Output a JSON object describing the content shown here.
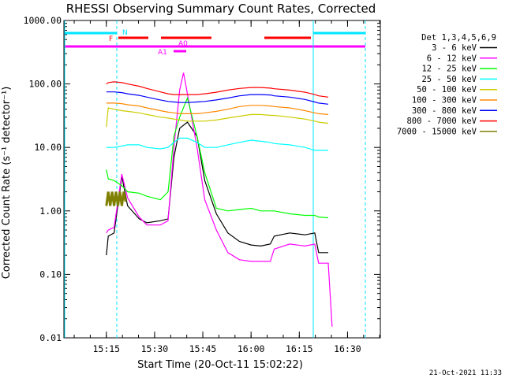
{
  "chart_data": {
    "type": "line",
    "title": "RHESSI Observing Summary Count Rates, Corrected",
    "xlabel": "Start Time (20-Oct-11 15:02:22)",
    "ylabel": "Corrected Count Rate (s⁻¹ detector⁻¹)",
    "yscale": "log",
    "ylim": [
      0.01,
      1000
    ],
    "xlim_minutes": [
      15.03,
      16.67
    ],
    "x_tick_labels": [
      "15:15",
      "15:30",
      "15:45",
      "16:00",
      "16:15",
      "16:30"
    ],
    "y_tick_labels": [
      "0.01",
      "0.10",
      "1.00",
      "10.00",
      "100.00",
      "1000.00"
    ],
    "legend_title": "Det 1,3,4,5,6,9",
    "stamp": "21-Oct-2021 11:33",
    "flags": {
      "night": "N",
      "flare": "F",
      "attenuator": "A0",
      "attenuator2": "A1"
    },
    "grid": false,
    "legend_position": "top-right",
    "series": [
      {
        "name": "3 - 6 keV",
        "color": "#000000",
        "points": [
          [
            15.25,
            0.2
          ],
          [
            15.26,
            0.4
          ],
          [
            15.29,
            0.45
          ],
          [
            15.33,
            3.5
          ],
          [
            15.36,
            1.2
          ],
          [
            15.42,
            0.75
          ],
          [
            15.46,
            0.65
          ],
          [
            15.53,
            0.7
          ],
          [
            15.57,
            0.75
          ],
          [
            15.6,
            7
          ],
          [
            15.63,
            20
          ],
          [
            15.67,
            25
          ],
          [
            15.72,
            15
          ],
          [
            15.76,
            3
          ],
          [
            15.82,
            0.9
          ],
          [
            15.88,
            0.45
          ],
          [
            15.94,
            0.33
          ],
          [
            16.0,
            0.29
          ],
          [
            16.05,
            0.28
          ],
          [
            16.1,
            0.3
          ],
          [
            16.12,
            0.4
          ],
          [
            16.2,
            0.45
          ],
          [
            16.28,
            0.42
          ],
          [
            16.33,
            0.45
          ],
          [
            16.35,
            0.22
          ],
          [
            16.4,
            0.22
          ]
        ]
      },
      {
        "name": "6 - 12 keV",
        "color": "#ff00ff",
        "points": [
          [
            15.25,
            0.45
          ],
          [
            15.26,
            0.5
          ],
          [
            15.29,
            0.55
          ],
          [
            15.33,
            3.8
          ],
          [
            15.36,
            1.6
          ],
          [
            15.42,
            0.8
          ],
          [
            15.46,
            0.6
          ],
          [
            15.53,
            0.6
          ],
          [
            15.57,
            0.7
          ],
          [
            15.6,
            10
          ],
          [
            15.63,
            80
          ],
          [
            15.65,
            150
          ],
          [
            15.67,
            70
          ],
          [
            15.72,
            10
          ],
          [
            15.76,
            1.5
          ],
          [
            15.82,
            0.5
          ],
          [
            15.88,
            0.22
          ],
          [
            15.94,
            0.17
          ],
          [
            16.0,
            0.16
          ],
          [
            16.05,
            0.16
          ],
          [
            16.1,
            0.16
          ],
          [
            16.12,
            0.25
          ],
          [
            16.2,
            0.3
          ],
          [
            16.28,
            0.28
          ],
          [
            16.33,
            0.3
          ],
          [
            16.35,
            0.15
          ],
          [
            16.4,
            0.15
          ],
          [
            16.42,
            0.015
          ]
        ]
      },
      {
        "name": "12 - 25 keV",
        "color": "#00ff00",
        "points": [
          [
            15.25,
            4.5
          ],
          [
            15.26,
            3.2
          ],
          [
            15.29,
            3.0
          ],
          [
            15.33,
            2.5
          ],
          [
            15.36,
            2.0
          ],
          [
            15.42,
            1.9
          ],
          [
            15.46,
            1.7
          ],
          [
            15.53,
            1.5
          ],
          [
            15.57,
            2.0
          ],
          [
            15.6,
            15
          ],
          [
            15.63,
            30
          ],
          [
            15.67,
            60
          ],
          [
            15.72,
            15
          ],
          [
            15.76,
            4
          ],
          [
            15.82,
            1.1
          ],
          [
            15.88,
            1.0
          ],
          [
            15.94,
            1.05
          ],
          [
            16.0,
            1.1
          ],
          [
            16.05,
            1.0
          ],
          [
            16.1,
            1.0
          ],
          [
            16.12,
            1.0
          ],
          [
            16.2,
            0.9
          ],
          [
            16.28,
            0.85
          ],
          [
            16.33,
            0.85
          ],
          [
            16.35,
            0.8
          ],
          [
            16.4,
            0.78
          ]
        ]
      },
      {
        "name": "25 - 50 keV",
        "color": "#00ffff",
        "points": [
          [
            15.25,
            10
          ],
          [
            15.26,
            10
          ],
          [
            15.29,
            10
          ],
          [
            15.33,
            10.5
          ],
          [
            15.36,
            11
          ],
          [
            15.42,
            11
          ],
          [
            15.46,
            10
          ],
          [
            15.53,
            9.5
          ],
          [
            15.57,
            10
          ],
          [
            15.6,
            12
          ],
          [
            15.63,
            14
          ],
          [
            15.67,
            14
          ],
          [
            15.72,
            12
          ],
          [
            15.76,
            10
          ],
          [
            15.82,
            10
          ],
          [
            15.88,
            11
          ],
          [
            15.94,
            12
          ],
          [
            16.0,
            13
          ],
          [
            16.05,
            12.5
          ],
          [
            16.1,
            12
          ],
          [
            16.12,
            11.5
          ],
          [
            16.2,
            11
          ],
          [
            16.28,
            10
          ],
          [
            16.33,
            9
          ],
          [
            16.35,
            9
          ],
          [
            16.4,
            9
          ]
        ]
      },
      {
        "name": "50 - 100 keV",
        "color": "#cccc00",
        "points": [
          [
            15.25,
            21
          ],
          [
            15.26,
            42
          ],
          [
            15.29,
            40
          ],
          [
            15.33,
            38
          ],
          [
            15.36,
            37
          ],
          [
            15.42,
            35
          ],
          [
            15.46,
            33
          ],
          [
            15.53,
            30
          ],
          [
            15.57,
            29
          ],
          [
            15.6,
            28
          ],
          [
            15.63,
            27
          ],
          [
            15.67,
            26
          ],
          [
            15.72,
            26
          ],
          [
            15.76,
            26
          ],
          [
            15.82,
            27
          ],
          [
            15.88,
            29
          ],
          [
            15.94,
            31
          ],
          [
            16.0,
            33
          ],
          [
            16.05,
            33
          ],
          [
            16.1,
            32
          ],
          [
            16.12,
            32
          ],
          [
            16.2,
            30
          ],
          [
            16.28,
            28
          ],
          [
            16.33,
            26
          ],
          [
            16.35,
            25
          ],
          [
            16.4,
            24
          ]
        ]
      },
      {
        "name": "100 - 300 keV",
        "color": "#ff8800",
        "points": [
          [
            15.25,
            50
          ],
          [
            15.26,
            50
          ],
          [
            15.29,
            50
          ],
          [
            15.33,
            49
          ],
          [
            15.36,
            47
          ],
          [
            15.42,
            45
          ],
          [
            15.46,
            42
          ],
          [
            15.53,
            38
          ],
          [
            15.57,
            36
          ],
          [
            15.6,
            35
          ],
          [
            15.63,
            34
          ],
          [
            15.67,
            34
          ],
          [
            15.72,
            34
          ],
          [
            15.76,
            35
          ],
          [
            15.82,
            37
          ],
          [
            15.88,
            40
          ],
          [
            15.94,
            44
          ],
          [
            16.0,
            46
          ],
          [
            16.05,
            46
          ],
          [
            16.1,
            45
          ],
          [
            16.12,
            44
          ],
          [
            16.2,
            42
          ],
          [
            16.28,
            38
          ],
          [
            16.33,
            35
          ],
          [
            16.35,
            34
          ],
          [
            16.4,
            33
          ]
        ]
      },
      {
        "name": "300 - 800 keV",
        "color": "#0000ff",
        "points": [
          [
            15.25,
            75
          ],
          [
            15.26,
            75
          ],
          [
            15.29,
            75
          ],
          [
            15.33,
            73
          ],
          [
            15.36,
            70
          ],
          [
            15.42,
            66
          ],
          [
            15.46,
            62
          ],
          [
            15.53,
            56
          ],
          [
            15.57,
            53
          ],
          [
            15.6,
            52
          ],
          [
            15.63,
            51
          ],
          [
            15.67,
            51
          ],
          [
            15.72,
            52
          ],
          [
            15.76,
            53
          ],
          [
            15.82,
            56
          ],
          [
            15.88,
            60
          ],
          [
            15.94,
            65
          ],
          [
            16.0,
            68
          ],
          [
            16.05,
            68
          ],
          [
            16.1,
            67
          ],
          [
            16.12,
            65
          ],
          [
            16.2,
            62
          ],
          [
            16.28,
            57
          ],
          [
            16.33,
            52
          ],
          [
            16.35,
            50
          ],
          [
            16.4,
            48
          ]
        ]
      },
      {
        "name": "800 - 7000 keV",
        "color": "#ff0000",
        "points": [
          [
            15.25,
            100
          ],
          [
            15.26,
            105
          ],
          [
            15.29,
            108
          ],
          [
            15.33,
            105
          ],
          [
            15.36,
            100
          ],
          [
            15.42,
            92
          ],
          [
            15.46,
            85
          ],
          [
            15.53,
            75
          ],
          [
            15.57,
            70
          ],
          [
            15.6,
            68
          ],
          [
            15.63,
            68
          ],
          [
            15.67,
            68
          ],
          [
            15.72,
            68
          ],
          [
            15.76,
            70
          ],
          [
            15.82,
            74
          ],
          [
            15.88,
            80
          ],
          [
            15.94,
            85
          ],
          [
            16.0,
            88
          ],
          [
            16.05,
            88
          ],
          [
            16.1,
            86
          ],
          [
            16.12,
            84
          ],
          [
            16.2,
            80
          ],
          [
            16.28,
            74
          ],
          [
            16.33,
            68
          ],
          [
            16.35,
            65
          ],
          [
            16.4,
            62
          ]
        ]
      },
      {
        "name": "7000 - 15000 keV",
        "color": "#808000",
        "points": [
          [
            15.25,
            1.2
          ],
          [
            15.26,
            2.0
          ],
          [
            15.27,
            1.2
          ],
          [
            15.28,
            2.0
          ],
          [
            15.29,
            1.2
          ],
          [
            15.3,
            2.0
          ],
          [
            15.31,
            1.2
          ],
          [
            15.32,
            2.0
          ],
          [
            15.33,
            1.2
          ],
          [
            15.34,
            2.0
          ],
          [
            15.35,
            1.4
          ]
        ]
      }
    ]
  }
}
